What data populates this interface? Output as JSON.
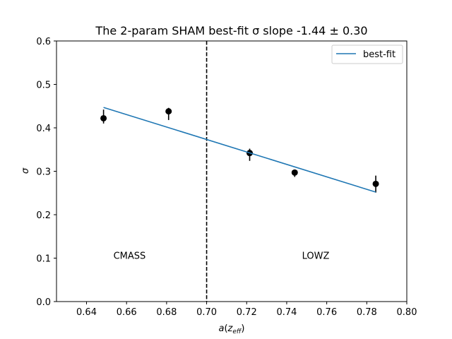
{
  "chart_data": {
    "type": "scatter",
    "title": "The 2-param SHAM best-fit σ slope -1.44 ± 0.30",
    "xlabel": "a(z_eff)",
    "ylabel": "σ",
    "xlim": [
      0.625,
      0.8
    ],
    "ylim": [
      0.0,
      0.6
    ],
    "xticks": [
      0.64,
      0.66,
      0.68,
      0.7,
      0.72,
      0.74,
      0.76,
      0.78,
      0.8
    ],
    "xtick_labels": [
      "0.64",
      "0.66",
      "0.68",
      "0.70",
      "0.72",
      "0.74",
      "0.76",
      "0.78",
      "0.80"
    ],
    "yticks": [
      0.0,
      0.1,
      0.2,
      0.3,
      0.4,
      0.5,
      0.6
    ],
    "ytick_labels": [
      "0.0",
      "0.1",
      "0.2",
      "0.3",
      "0.4",
      "0.5",
      "0.6"
    ],
    "grid": false,
    "legend_position": "top-right",
    "series": [
      {
        "kind": "errorbar",
        "color": "#000000",
        "points": [
          {
            "x": 0.6485,
            "y": 0.422,
            "yerr_low": 0.012,
            "yerr_high": 0.02
          },
          {
            "x": 0.681,
            "y": 0.438,
            "yerr_low": 0.02,
            "yerr_high": 0.008
          },
          {
            "x": 0.7215,
            "y": 0.342,
            "yerr_low": 0.018,
            "yerr_high": 0.01
          },
          {
            "x": 0.744,
            "y": 0.297,
            "yerr_low": 0.01,
            "yerr_high": 0.006
          },
          {
            "x": 0.7845,
            "y": 0.271,
            "yerr_low": 0.02,
            "yerr_high": 0.019
          }
        ]
      },
      {
        "kind": "line",
        "name": "best-fit",
        "color": "#1f77b4",
        "x": [
          0.6485,
          0.7845
        ],
        "y": [
          0.447,
          0.252
        ]
      }
    ],
    "vline": {
      "x": 0.7,
      "style": "dashed",
      "color": "#000000"
    },
    "annotations": [
      {
        "text": "CMASS",
        "x": 0.6615,
        "y": 0.105
      },
      {
        "text": "LOWZ",
        "x": 0.7545,
        "y": 0.105
      }
    ]
  }
}
